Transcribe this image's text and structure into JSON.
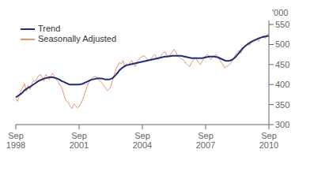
{
  "chart_data": {
    "type": "line",
    "ylabel": "'000",
    "legend": "upper left",
    "grid": false,
    "categories": [
      "Sep\n1998",
      null,
      null,
      null,
      null,
      null,
      null,
      null,
      null,
      null,
      null,
      null,
      null,
      null,
      null,
      null,
      null,
      null,
      null,
      null,
      null,
      null,
      null,
      null,
      null,
      null,
      null,
      null,
      null,
      null,
      null,
      null,
      null,
      null,
      null,
      null,
      "Sep\n2001",
      null,
      null,
      null,
      null,
      null,
      null,
      null,
      null,
      null,
      null,
      null,
      null,
      null,
      null,
      null,
      null,
      null,
      null,
      null,
      null,
      null,
      null,
      null,
      null,
      null,
      null,
      null,
      null,
      null,
      null,
      null,
      null,
      null,
      null,
      null,
      "Sep\n2004",
      null,
      null,
      null,
      null,
      null,
      null,
      null,
      null,
      null,
      null,
      null,
      null,
      null,
      null,
      null,
      null,
      null,
      null,
      null,
      null,
      null,
      null,
      null,
      null,
      null,
      null,
      null,
      null,
      null,
      null,
      null,
      null,
      null,
      null,
      null,
      "Sep\n2007",
      null,
      null,
      null,
      null,
      null,
      null,
      null,
      null,
      null,
      null,
      null,
      null,
      null,
      null,
      null,
      null,
      null,
      null,
      null,
      null,
      null,
      null,
      null,
      null,
      null,
      null,
      null,
      null,
      null,
      null,
      null,
      null,
      null,
      null,
      null,
      "Sep\n2010"
    ],
    "ylim": [
      300,
      560
    ],
    "yticks": [
      300,
      350,
      400,
      450,
      500,
      550
    ],
    "series": [
      {
        "name": "Seasonally Adjusted",
        "color": "#e8956d",
        "values": [
          365,
          358,
          372,
          385,
          393,
          402,
          382,
          398,
          388,
          400,
          410,
          408,
          415,
          422,
          425,
          418,
          408,
          425,
          420,
          412,
          422,
          428,
          420,
          412,
          408,
          398,
          395,
          380,
          365,
          358,
          355,
          345,
          340,
          352,
          348,
          342,
          345,
          352,
          362,
          375,
          388,
          400,
          410,
          415,
          418,
          420,
          418,
          412,
          408,
          404,
          398,
          392,
          385,
          388,
          395,
          410,
          425,
          438,
          448,
          455,
          452,
          460,
          445,
          452,
          448,
          455,
          460,
          450,
          445,
          458,
          462,
          468,
          470,
          472,
          468,
          462,
          460,
          465,
          470,
          475,
          468,
          462,
          468,
          475,
          480,
          482,
          472,
          468,
          475,
          480,
          488,
          482,
          472,
          468,
          465,
          462,
          458,
          452,
          448,
          445,
          455,
          462,
          468,
          462,
          455,
          450,
          458,
          465,
          472,
          475,
          468,
          462,
          468,
          472,
          475,
          468,
          462,
          455,
          448,
          442,
          445,
          448,
          452,
          458,
          465,
          475,
          480,
          485,
          478,
          488,
          495,
          498,
          505,
          498,
          505,
          508,
          512,
          515,
          508,
          515,
          520,
          522,
          515,
          525,
          528
        ]
      },
      {
        "name": "Trend",
        "color": "#1f2d7b",
        "values": [
          368,
          371,
          374,
          377,
          381,
          386,
          389,
          392,
          394,
          397,
          400,
          403,
          406,
          409,
          411,
          413,
          415,
          416,
          417,
          418,
          418,
          418,
          417,
          416,
          414,
          412,
          409,
          407,
          405,
          403,
          401,
          400,
          400,
          400,
          400,
          400,
          400,
          401,
          402,
          404,
          406,
          408,
          410,
          412,
          413,
          414,
          415,
          415,
          415,
          415,
          414,
          413,
          413,
          413,
          414,
          416,
          420,
          425,
          430,
          436,
          440,
          443,
          446,
          448,
          449,
          450,
          451,
          452,
          453,
          454,
          455,
          456,
          457,
          458,
          459,
          460,
          461,
          462,
          463,
          464,
          465,
          466,
          467,
          468,
          469,
          470,
          470,
          471,
          471,
          472,
          472,
          472,
          472,
          472,
          472,
          471,
          470,
          469,
          468,
          467,
          466,
          466,
          466,
          466,
          466,
          466,
          466,
          467,
          468,
          469,
          470,
          470,
          470,
          470,
          469,
          468,
          466,
          464,
          462,
          460,
          459,
          459,
          460,
          462,
          465,
          469,
          474,
          479,
          485,
          490,
          494,
          498,
          501,
          504,
          507,
          509,
          511,
          513,
          515,
          517,
          518,
          519,
          520,
          521,
          522
        ]
      }
    ]
  }
}
